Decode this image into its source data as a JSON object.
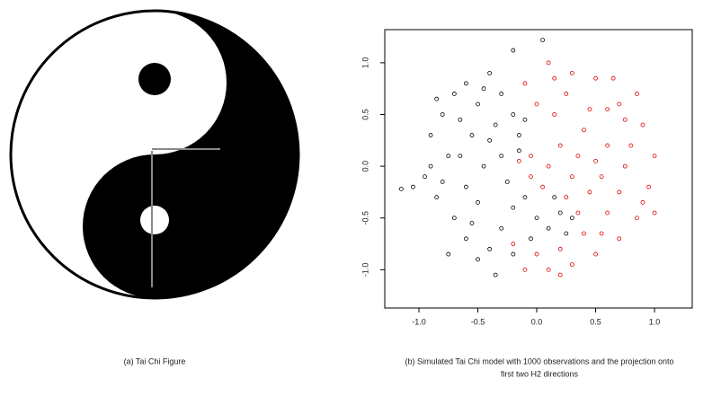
{
  "captions": [
    [
      "(a)  Tai Chi Figure"
    ],
    [
      "(b)  Simulated Tai Chi model with 1000 observations and the projection onto",
      "first two H2 directions"
    ]
  ],
  "chart_data": {
    "type": "scatter",
    "xlim": [
      -1.29,
      1.32
    ],
    "ylim": [
      -1.37,
      1.32
    ],
    "xticks": [
      {
        "value": -1,
        "label": "-1.0"
      },
      {
        "value": -0.5,
        "label": "-0.5"
      },
      {
        "value": 0,
        "label": "0.0"
      },
      {
        "value": 0.5,
        "label": "0.5"
      },
      {
        "value": 1,
        "label": "1.0"
      }
    ],
    "yticks": [
      {
        "value": -1,
        "label": "-1.0"
      },
      {
        "value": -0.5,
        "label": "-0.5"
      },
      {
        "value": 0,
        "label": "0.0"
      },
      {
        "value": 0.5,
        "label": "0.5"
      },
      {
        "value": 1,
        "label": "1.0"
      }
    ],
    "series": [
      {
        "color": "#000000",
        "x": [
          -0.9,
          -0.8,
          -0.7,
          -0.6,
          -0.5,
          -0.4,
          -0.3,
          -0.2,
          -0.35,
          -0.55,
          -0.75,
          -0.95,
          -1.05,
          -0.85,
          -0.7,
          -0.6,
          -0.5,
          -0.4,
          -0.3,
          -0.2,
          -0.1,
          0.0,
          0.1,
          0.2,
          0.3,
          -0.05,
          -0.2,
          -0.35,
          -0.6,
          -0.45,
          -0.3,
          -0.15,
          -0.65,
          -0.9,
          -0.8,
          -0.5,
          -0.4,
          -0.25,
          -0.15,
          -0.45,
          -0.2,
          0.05,
          -1.15,
          -0.75,
          0.15,
          -0.1,
          -0.65,
          -0.85,
          -0.55,
          0.25
        ],
        "y": [
          0.3,
          0.5,
          0.7,
          0.8,
          0.6,
          0.9,
          0.7,
          0.5,
          0.4,
          0.3,
          0.1,
          -0.1,
          -0.2,
          -0.3,
          -0.5,
          -0.7,
          -0.9,
          -0.8,
          -0.6,
          -0.4,
          -0.3,
          -0.5,
          -0.6,
          -0.45,
          -0.5,
          -0.7,
          -0.85,
          -1.05,
          -0.2,
          0.0,
          0.1,
          0.15,
          0.45,
          0.0,
          -0.15,
          -0.35,
          0.25,
          -0.15,
          0.3,
          0.75,
          1.12,
          1.22,
          -0.22,
          -0.85,
          -0.3,
          0.45,
          0.1,
          0.65,
          -0.55,
          -0.65
        ]
      },
      {
        "color": "#e00000",
        "x": [
          0.1,
          0.3,
          0.5,
          0.7,
          0.9,
          1.0,
          0.95,
          0.85,
          0.7,
          0.5,
          0.3,
          0.1,
          -0.1,
          -0.2,
          0.0,
          0.2,
          0.4,
          0.6,
          0.45,
          0.3,
          0.1,
          -0.05,
          0.2,
          0.4,
          0.6,
          0.75,
          0.55,
          0.15,
          0.0,
          -0.1,
          0.25,
          0.45,
          0.65,
          0.8,
          0.35,
          -0.15,
          0.05,
          0.25,
          0.5,
          0.9,
          0.7,
          0.15,
          0.35,
          0.6,
          1.0,
          -0.05,
          0.75,
          0.85,
          0.2,
          0.55
        ],
        "y": [
          1.0,
          0.9,
          0.85,
          0.6,
          0.4,
          0.1,
          -0.2,
          -0.5,
          -0.7,
          -0.85,
          -0.95,
          -1.0,
          -1.0,
          -0.75,
          -0.85,
          -0.8,
          -0.65,
          -0.45,
          -0.25,
          -0.1,
          0.0,
          0.1,
          0.2,
          0.35,
          0.2,
          0.0,
          -0.1,
          0.5,
          0.6,
          0.8,
          0.7,
          0.55,
          0.85,
          0.2,
          0.1,
          0.05,
          -0.2,
          -0.3,
          0.05,
          -0.35,
          -0.25,
          0.85,
          -0.45,
          0.55,
          -0.45,
          -0.1,
          0.45,
          0.7,
          -1.05,
          -0.65
        ]
      }
    ]
  }
}
